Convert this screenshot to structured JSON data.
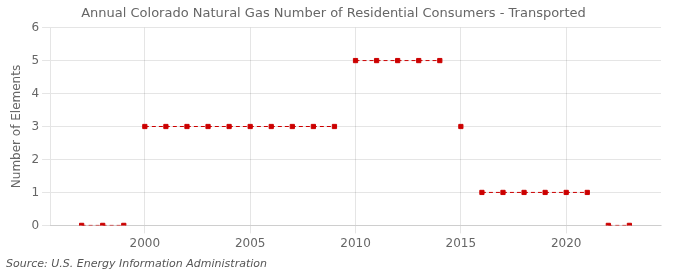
{
  "chart_data": {
    "type": "line",
    "title": "Annual Colorado Natural Gas Number of Residential Consumers - Transported",
    "ylabel": "Number of Elements",
    "annotation": "Source: U.S. Energy Information Administration",
    "x": [
      1997,
      1998,
      1999,
      2000,
      2001,
      2002,
      2003,
      2004,
      2005,
      2006,
      2007,
      2008,
      2009,
      2010,
      2011,
      2012,
      2013,
      2014,
      2015,
      2016,
      2017,
      2018,
      2019,
      2020,
      2021,
      2022,
      2023
    ],
    "values": [
      0,
      0,
      0,
      3,
      3,
      3,
      3,
      3,
      3,
      3,
      3,
      3,
      3,
      5,
      5,
      5,
      5,
      5,
      3,
      1,
      1,
      1,
      1,
      1,
      1,
      0,
      0
    ],
    "color": "#cc0000",
    "marker": "square",
    "line_style": "dashed",
    "xlim": [
      1995.5,
      2024.5
    ],
    "ylim": [
      0,
      6
    ],
    "xticks": [
      2000,
      2005,
      2010,
      2015,
      2020
    ],
    "yticks": [
      0,
      1,
      2,
      3,
      4,
      5,
      6
    ],
    "grid": true
  }
}
